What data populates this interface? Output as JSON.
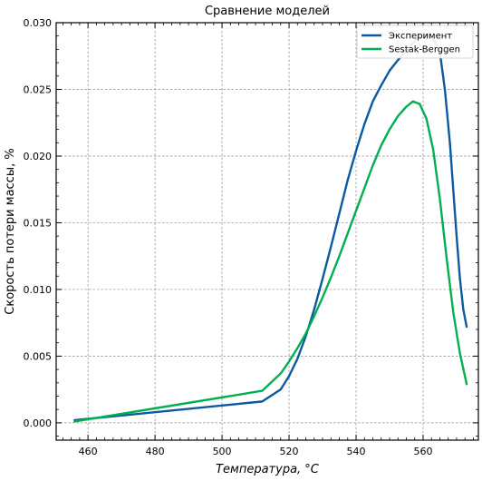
{
  "chart_data": {
    "type": "line",
    "title": "Сравнение моделей",
    "xlabel": "Температура, °C",
    "ylabel": "Скорость потери массы, %",
    "xlim": [
      450.5,
      576.5
    ],
    "ylim": [
      -0.0013,
      0.03
    ],
    "xticks": [
      460,
      480,
      500,
      520,
      540,
      560
    ],
    "yticks": [
      0.0,
      0.005,
      0.01,
      0.015,
      0.02,
      0.025,
      0.03
    ],
    "ytick_labels": [
      "0.000",
      "0.005",
      "0.010",
      "0.015",
      "0.020",
      "0.025",
      "0.030"
    ],
    "grid": true,
    "legend_position": "top-right",
    "series": [
      {
        "name": "Эксперимент",
        "color": "#0b5aa0",
        "x": [
          456,
          512,
          517.5,
          520,
          522.5,
          525,
          527.5,
          530,
          532.5,
          535,
          537.5,
          540,
          542.5,
          545,
          547.5,
          550,
          552.5,
          555,
          557,
          559,
          561,
          563,
          565,
          566.5,
          568,
          569,
          570,
          571,
          572,
          573
        ],
        "y": [
          0.0002,
          0.0016,
          0.0025,
          0.0035,
          0.0048,
          0.0065,
          0.0085,
          0.0108,
          0.0132,
          0.0157,
          0.0182,
          0.0204,
          0.0224,
          0.0241,
          0.0253,
          0.0264,
          0.0272,
          0.0279,
          0.0285,
          0.029,
          0.0291,
          0.0288,
          0.0278,
          0.025,
          0.021,
          0.0175,
          0.014,
          0.0108,
          0.0085,
          0.0072
        ]
      },
      {
        "name": "Sestak-Berggen",
        "color": "#00b050",
        "x": [
          456,
          512,
          517.5,
          520,
          522.5,
          525,
          527.5,
          530,
          532.5,
          535,
          537.5,
          540,
          542.5,
          545,
          547.5,
          550,
          552.5,
          555,
          557,
          559,
          561,
          563,
          565,
          567,
          569,
          571,
          573
        ],
        "y": [
          0.0001,
          0.0024,
          0.0037,
          0.0046,
          0.0056,
          0.0067,
          0.008,
          0.0094,
          0.0109,
          0.0125,
          0.0142,
          0.0159,
          0.0176,
          0.0193,
          0.0208,
          0.022,
          0.023,
          0.0237,
          0.0241,
          0.0239,
          0.0228,
          0.0205,
          0.0168,
          0.0124,
          0.0083,
          0.0052,
          0.0029
        ]
      }
    ]
  }
}
